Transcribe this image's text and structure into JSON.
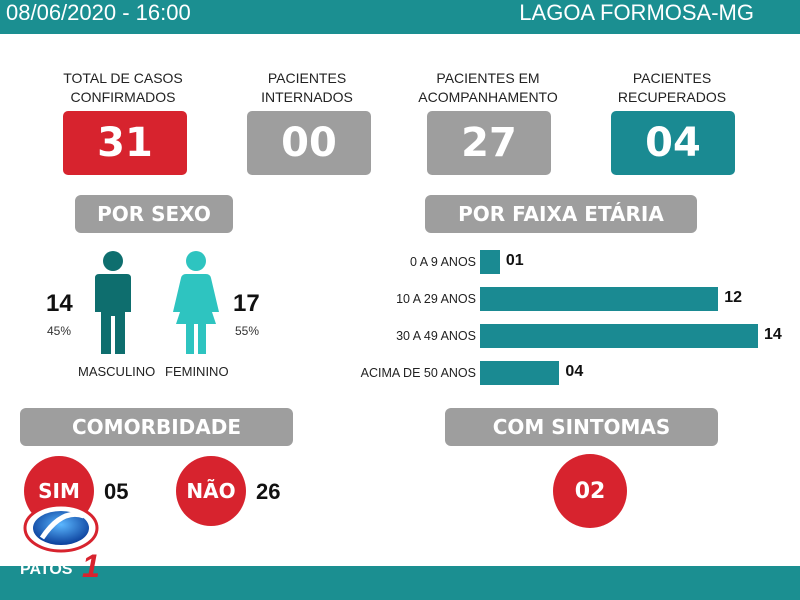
{
  "header": {
    "date": "08/06/2020 - 16:00",
    "city": "LAGOA FORMOSA-MG"
  },
  "cards": [
    {
      "label_l1": "TOTAL DE CASOS",
      "label_l2": "CONFIRMADOS",
      "value": "31",
      "color": "#d7232e"
    },
    {
      "label_l1": "PACIENTES",
      "label_l2": "INTERNADOS",
      "value": "00",
      "color": "#9e9e9e"
    },
    {
      "label_l1": "PACIENTES EM",
      "label_l2": "ACOMPANHAMENTO",
      "value": "27",
      "color": "#9e9e9e"
    },
    {
      "label_l1": "PACIENTES",
      "label_l2": "RECUPERADOS",
      "value": "04",
      "color": "#1a8a92"
    }
  ],
  "sexo": {
    "title": "POR SEXO",
    "male": {
      "count": "14",
      "pct": "45%",
      "label": "MASCULINO",
      "color": "#0e6e6e"
    },
    "female": {
      "count": "17",
      "pct": "55%",
      "label": "FEMININO",
      "color": "#2ec4c0"
    }
  },
  "faixa": {
    "title": "POR FAIXA ETÁRIA"
  },
  "chart_data": {
    "type": "bar",
    "orientation": "horizontal",
    "categories": [
      "0 A 9 ANOS",
      "10 A 29 ANOS",
      "30 A 49 ANOS",
      "ACIMA DE 50 ANOS"
    ],
    "values": [
      1,
      12,
      14,
      4
    ],
    "value_labels": [
      "01",
      "12",
      "14",
      "04"
    ],
    "xlim": [
      0,
      14
    ],
    "color": "#1a8a92"
  },
  "comorbidade": {
    "title": "COMORBIDADE",
    "sim_label": "SIM",
    "sim_value": "05",
    "nao_label": "NÃO",
    "nao_value": "26"
  },
  "sintomas": {
    "title": "COM SINTOMAS",
    "value": "02"
  },
  "logo": {
    "text": "PATOS",
    "number": "1"
  }
}
